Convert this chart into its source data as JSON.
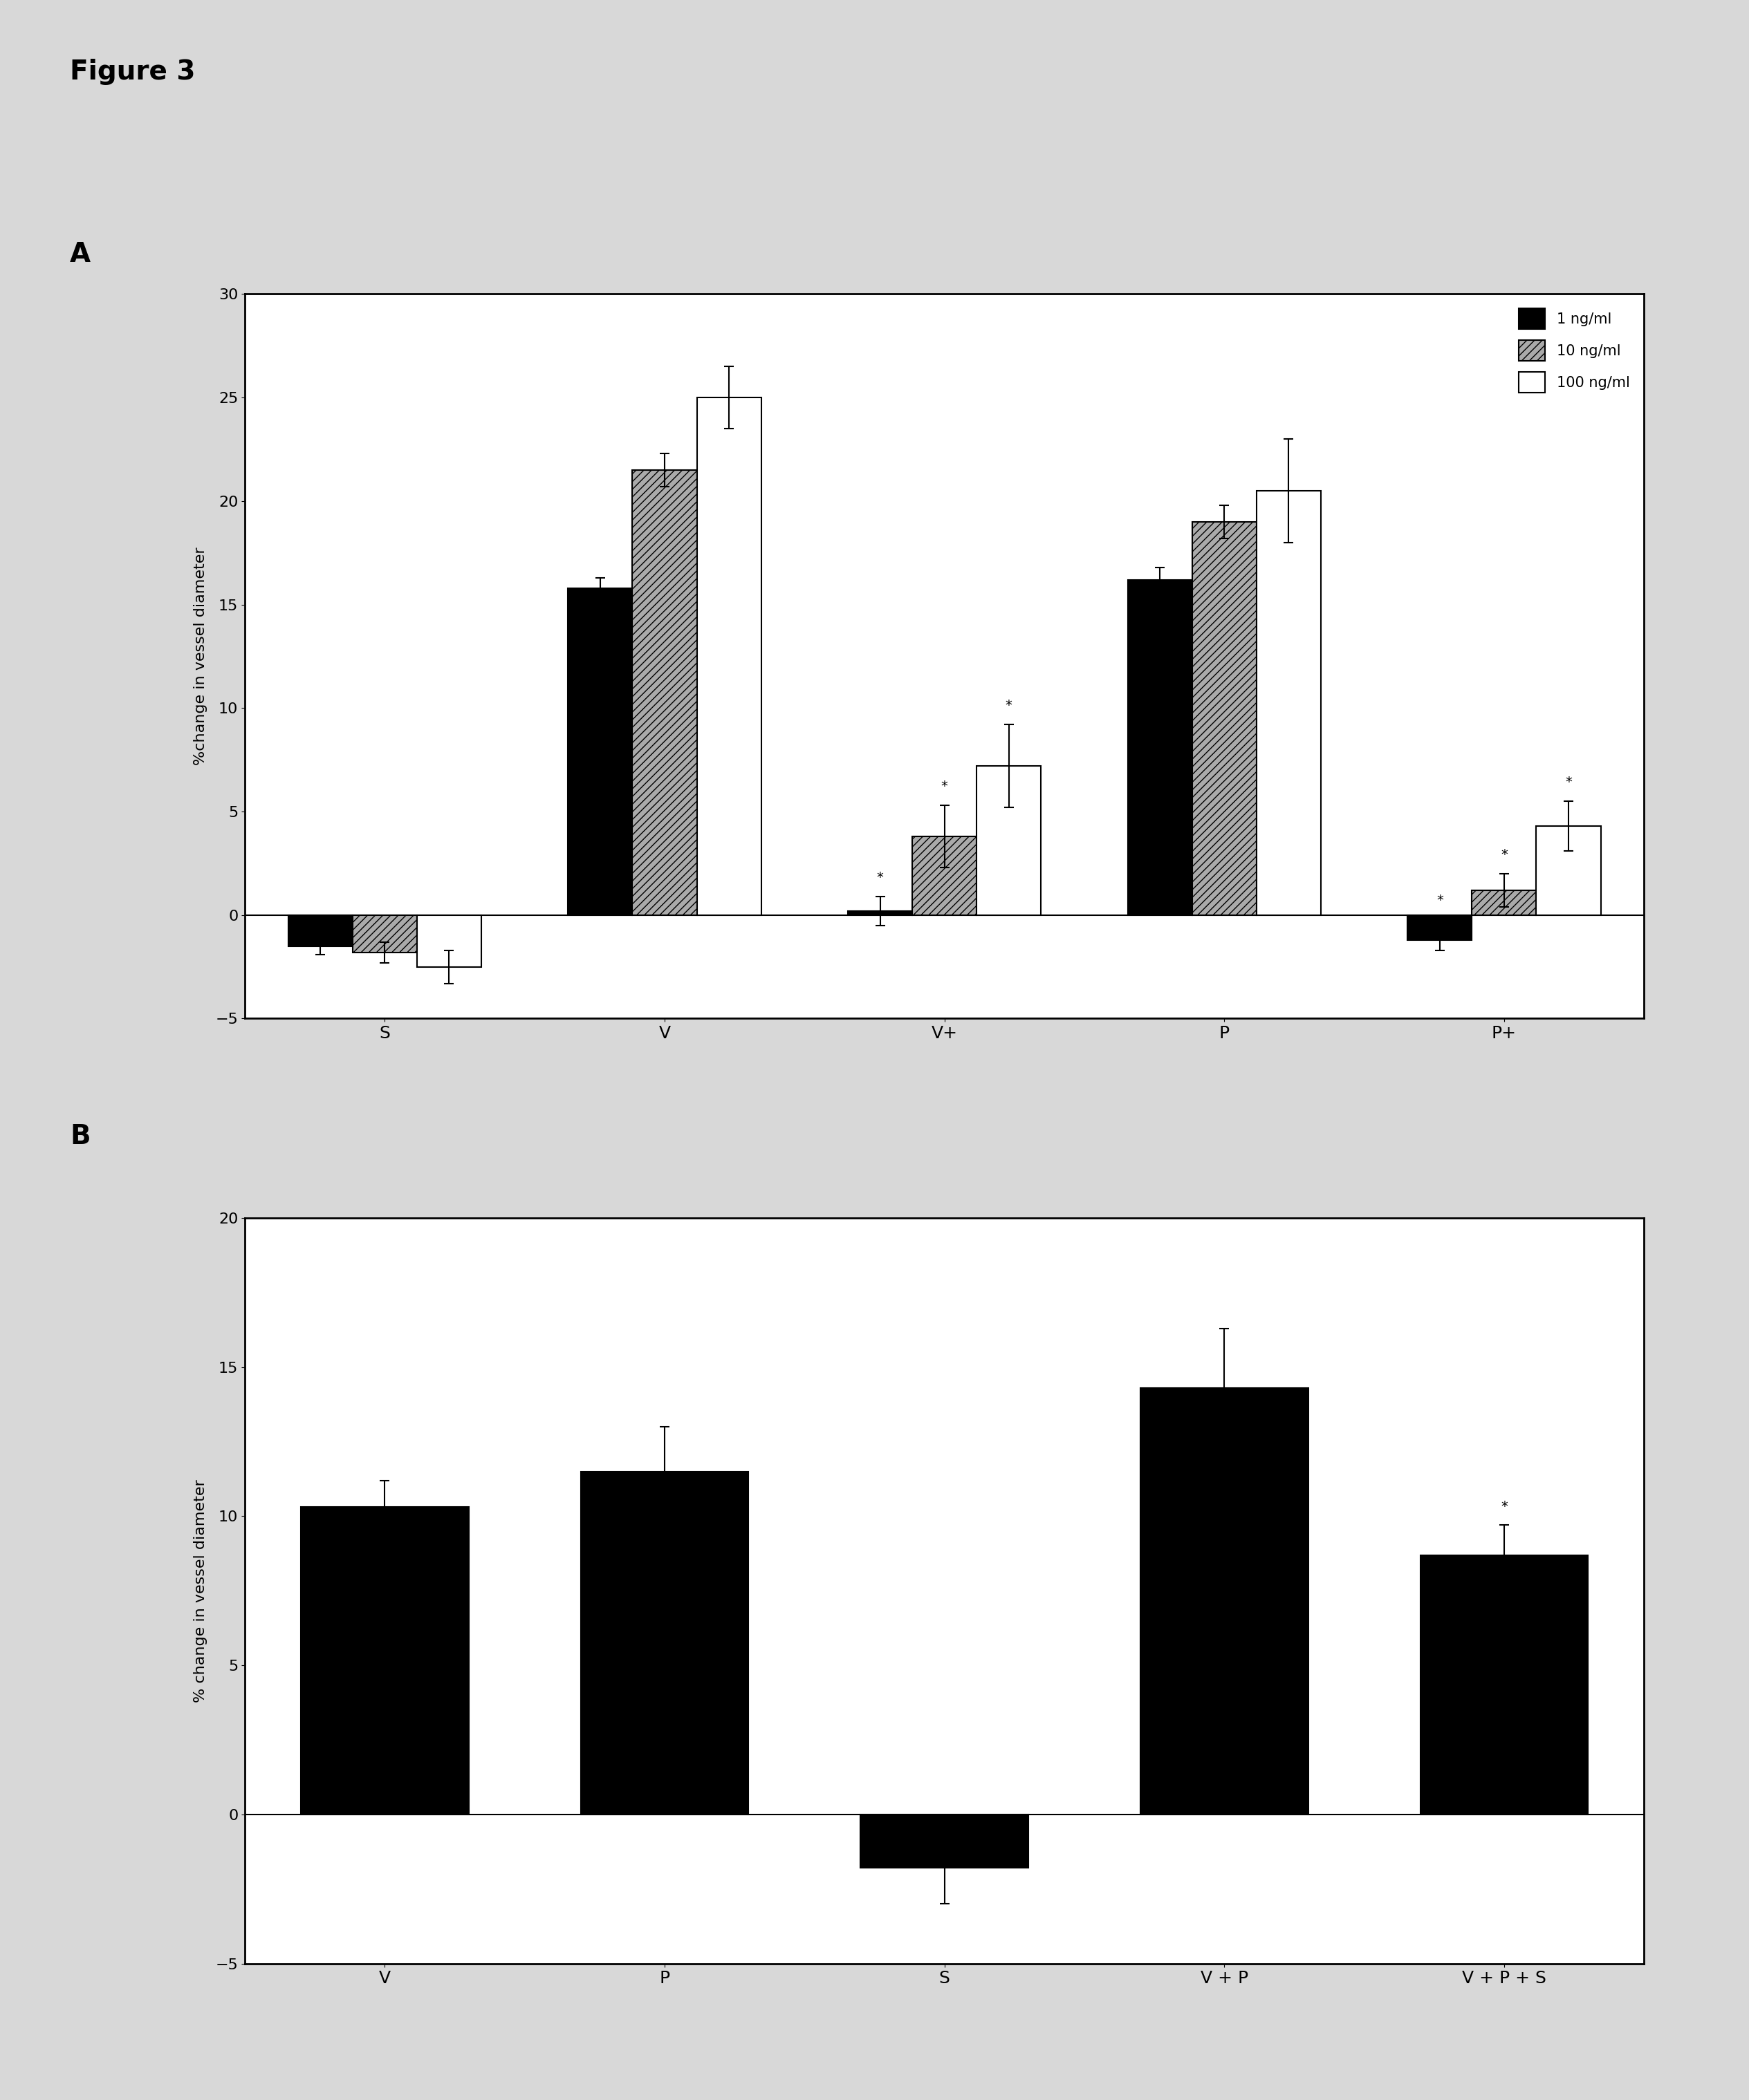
{
  "figure_title": "Figure 3",
  "panel_A": {
    "categories": [
      "S",
      "V",
      "V+",
      "P",
      "P+"
    ],
    "bar_width": 0.23,
    "series": [
      {
        "label": "1 ng/ml",
        "color": "#000000",
        "hatch": "",
        "values": [
          -1.5,
          15.8,
          0.2,
          16.2,
          -1.2
        ],
        "errors": [
          0.4,
          0.5,
          0.7,
          0.6,
          0.5
        ]
      },
      {
        "label": "10 ng/ml",
        "color": "#aaaaaa",
        "hatch": "///",
        "values": [
          -1.8,
          21.5,
          3.8,
          19.0,
          1.2
        ],
        "errors": [
          0.5,
          0.8,
          1.5,
          0.8,
          0.8
        ]
      },
      {
        "label": "100 ng/ml",
        "color": "#ffffff",
        "hatch": "",
        "values": [
          -2.5,
          25.0,
          7.2,
          20.5,
          4.3
        ],
        "errors": [
          0.8,
          1.5,
          2.0,
          2.5,
          1.2
        ]
      }
    ],
    "ylim": [
      -5,
      30
    ],
    "yticks": [
      -5,
      0,
      5,
      10,
      15,
      20,
      25,
      30
    ],
    "ylabel": "%change in vessel diameter",
    "star_cats": [
      2,
      4
    ]
  },
  "panel_B": {
    "categories": [
      "V",
      "P",
      "S",
      "V+P",
      "V+P+S"
    ],
    "categories_display": [
      "V",
      "P",
      "S",
      "V + P",
      "V + P + S"
    ],
    "bar_width": 0.6,
    "values": [
      10.3,
      11.5,
      -1.8,
      14.3,
      8.7
    ],
    "errors": [
      0.9,
      1.5,
      1.2,
      2.0,
      1.0
    ],
    "color": "#000000",
    "ylim": [
      -5,
      20
    ],
    "yticks": [
      -5,
      0,
      5,
      10,
      15,
      20
    ],
    "ylabel": "% change in vessel diameter",
    "star_index": 4
  },
  "bg_color": "#d8d8d8",
  "plot_bg": "#ffffff"
}
